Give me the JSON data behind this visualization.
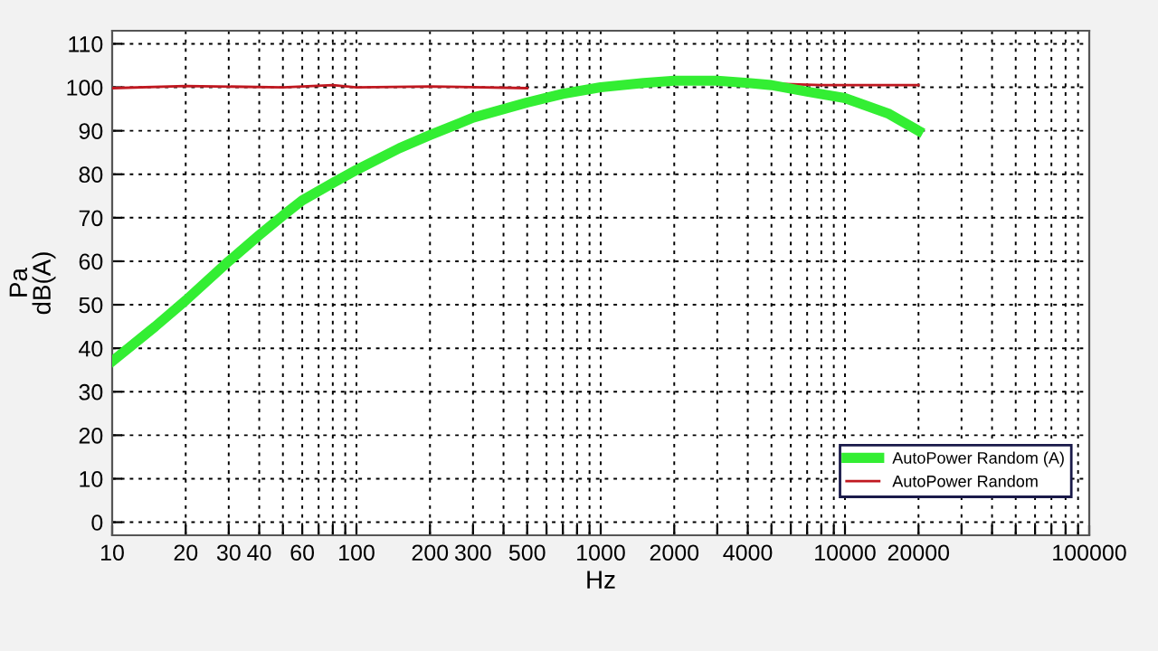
{
  "chart_data": {
    "type": "line",
    "xlabel": "Hz",
    "ylabel": "Pa\ndB(A)",
    "log": "x",
    "xlim": [
      10,
      100000
    ],
    "ylim": [
      -3,
      113
    ],
    "xticks": [
      10,
      20,
      30,
      40,
      {
        "value": 50,
        "label": null
      },
      60,
      {
        "value": 70,
        "label": null
      },
      {
        "value": 80,
        "label": null
      },
      {
        "value": 90,
        "label": null
      },
      100,
      200,
      300,
      {
        "value": 400,
        "label": null
      },
      500,
      {
        "value": 600,
        "label": null
      },
      {
        "value": 700,
        "label": null
      },
      {
        "value": 800,
        "label": null
      },
      {
        "value": 900,
        "label": null
      },
      1000,
      2000,
      {
        "value": 3000,
        "label": null
      },
      4000,
      {
        "value": 5000,
        "label": null
      },
      {
        "value": 6000,
        "label": null
      },
      {
        "value": 7000,
        "label": null
      },
      {
        "value": 8000,
        "label": null
      },
      {
        "value": 9000,
        "label": null
      },
      10000,
      20000,
      {
        "value": 30000,
        "label": null
      },
      {
        "value": 40000,
        "label": null
      },
      {
        "value": 50000,
        "label": null
      },
      {
        "value": 60000,
        "label": null
      },
      {
        "value": 70000,
        "label": null
      },
      {
        "value": 80000,
        "label": null
      },
      {
        "value": 90000,
        "label": null
      },
      100000
    ],
    "yticks": [
      0,
      10,
      20,
      30,
      40,
      50,
      60,
      70,
      80,
      90,
      100,
      110
    ],
    "grid": true,
    "legend": "bottom right",
    "line_style": "solid",
    "series": [
      {
        "name": "AutoPower Random (A)",
        "color": "#33ee33",
        "x": [
          10,
          15,
          20,
          30,
          40,
          50,
          60,
          80,
          100,
          150,
          200,
          300,
          500,
          700,
          1000,
          1500,
          2000,
          3000,
          4000,
          5000,
          7000,
          10000,
          15000,
          20000
        ],
        "values": [
          37,
          45,
          51,
          60,
          66,
          70.5,
          74,
          78,
          81,
          86,
          89,
          93,
          96.5,
          98.5,
          100,
          101,
          101.5,
          101.5,
          101,
          100.5,
          99,
          97.5,
          94,
          90
        ]
      },
      {
        "name": "AutoPower Random",
        "color": "#c01820",
        "x": [
          10,
          20,
          50,
          80,
          100,
          200,
          500,
          1000,
          2000,
          4000,
          8000,
          10000,
          20000
        ],
        "values": [
          99.8,
          100.3,
          100,
          100.5,
          100,
          100.2,
          99.8,
          null,
          101,
          101,
          100.5,
          100.5,
          100.5
        ]
      }
    ]
  }
}
